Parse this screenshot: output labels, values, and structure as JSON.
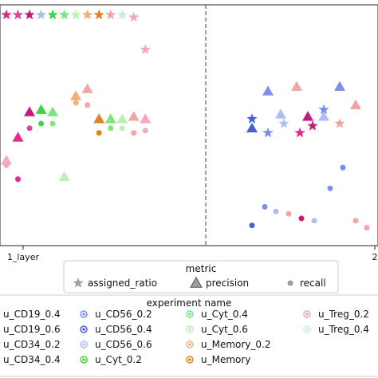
{
  "chart_data": {
    "type": "scatter",
    "x_tick_labels": [
      "1_layer",
      "2"
    ],
    "ylim": [
      0,
      1
    ],
    "metric_legend": {
      "title": "metric",
      "entries": [
        {
          "label": "assigned_ratio",
          "marker": "star"
        },
        {
          "label": "precision",
          "marker": "triangle"
        },
        {
          "label": "recall",
          "marker": "circle"
        }
      ]
    },
    "experiment_legend": {
      "title": "experiment name",
      "entries": [
        {
          "label": "u_CD19_0.4",
          "color": "#e7298a"
        },
        {
          "label": "u_CD19_0.6",
          "color": "#f4a6c8"
        },
        {
          "label": "u_CD34_0.2",
          "color": "#d9479a"
        },
        {
          "label": "u_CD34_0.4",
          "color": "#c51b7d"
        },
        {
          "label": "u_CD56_0.2",
          "color": "#7b8ff0"
        },
        {
          "label": "u_CD56_0.4",
          "color": "#4a5fd6"
        },
        {
          "label": "u_CD56_0.6",
          "color": "#b0bcf5"
        },
        {
          "label": "u_Cyt_0.2",
          "color": "#3fd63f"
        },
        {
          "label": "u_Cyt_0.4",
          "color": "#7be67b"
        },
        {
          "label": "u_Cyt_0.6",
          "color": "#b9f2b9"
        },
        {
          "label": "u_Memory_0.2",
          "color": "#f0b07a"
        },
        {
          "label": "u_Memory",
          "color": "#e6821e"
        },
        {
          "label": "u_Treg_0.2",
          "color": "#f2a5a5"
        },
        {
          "label": "u_Treg_0.4",
          "color": "#c9ecd6"
        }
      ]
    },
    "panels": [
      {
        "x_tick": "1_layer",
        "points": [
          {
            "m": "star",
            "x": 0.0,
            "y": 0.97,
            "c": "#e7298a"
          },
          {
            "m": "star",
            "x": 0.06,
            "y": 0.97,
            "c": "#d9479a"
          },
          {
            "m": "star",
            "x": 0.12,
            "y": 0.97,
            "c": "#c51b7d"
          },
          {
            "m": "star",
            "x": 0.18,
            "y": 0.97,
            "c": "#b0bcf5"
          },
          {
            "m": "star",
            "x": 0.24,
            "y": 0.97,
            "c": "#3fd63f"
          },
          {
            "m": "star",
            "x": 0.3,
            "y": 0.97,
            "c": "#7be67b"
          },
          {
            "m": "star",
            "x": 0.36,
            "y": 0.97,
            "c": "#b9f2b9"
          },
          {
            "m": "star",
            "x": 0.42,
            "y": 0.97,
            "c": "#f0b07a"
          },
          {
            "m": "star",
            "x": 0.48,
            "y": 0.97,
            "c": "#e6821e"
          },
          {
            "m": "star",
            "x": 0.54,
            "y": 0.97,
            "c": "#f2a5a5"
          },
          {
            "m": "star",
            "x": 0.6,
            "y": 0.97,
            "c": "#c9ecd6"
          },
          {
            "m": "star",
            "x": 0.66,
            "y": 0.96,
            "c": "#f4a6c8"
          },
          {
            "m": "star",
            "x": 0.72,
            "y": 0.82,
            "c": "#f4a6c8"
          },
          {
            "m": "triangle",
            "x": 0.0,
            "y": 0.34,
            "c": "#f4a6c8"
          },
          {
            "m": "triangle",
            "x": 0.06,
            "y": 0.44,
            "c": "#e7298a"
          },
          {
            "m": "triangle",
            "x": 0.12,
            "y": 0.55,
            "c": "#c51b7d"
          },
          {
            "m": "triangle",
            "x": 0.18,
            "y": 0.56,
            "c": "#3fd63f"
          },
          {
            "m": "triangle",
            "x": 0.24,
            "y": 0.55,
            "c": "#7be67b"
          },
          {
            "m": "triangle",
            "x": 0.3,
            "y": 0.27,
            "c": "#b9f2b9"
          },
          {
            "m": "triangle",
            "x": 0.36,
            "y": 0.62,
            "c": "#f0b07a"
          },
          {
            "m": "triangle",
            "x": 0.42,
            "y": 0.65,
            "c": "#f2a5a5"
          },
          {
            "m": "triangle",
            "x": 0.48,
            "y": 0.52,
            "c": "#e6821e"
          },
          {
            "m": "triangle",
            "x": 0.54,
            "y": 0.52,
            "c": "#7be67b"
          },
          {
            "m": "triangle",
            "x": 0.6,
            "y": 0.52,
            "c": "#b9f2b9"
          },
          {
            "m": "triangle",
            "x": 0.66,
            "y": 0.53,
            "c": "#f2a5a5"
          },
          {
            "m": "triangle",
            "x": 0.72,
            "y": 0.52,
            "c": "#f4a6c8"
          },
          {
            "m": "circle",
            "x": 0.0,
            "y": 0.32,
            "c": "#f4a6c8"
          },
          {
            "m": "circle",
            "x": 0.06,
            "y": 0.26,
            "c": "#e7298a"
          },
          {
            "m": "circle",
            "x": 0.12,
            "y": 0.48,
            "c": "#d9479a"
          },
          {
            "m": "circle",
            "x": 0.18,
            "y": 0.5,
            "c": "#3fd63f"
          },
          {
            "m": "circle",
            "x": 0.24,
            "y": 0.5,
            "c": "#7be67b"
          },
          {
            "m": "circle",
            "x": 0.36,
            "y": 0.59,
            "c": "#f0b07a"
          },
          {
            "m": "circle",
            "x": 0.42,
            "y": 0.58,
            "c": "#f2a5a5"
          },
          {
            "m": "circle",
            "x": 0.48,
            "y": 0.46,
            "c": "#e6821e"
          },
          {
            "m": "circle",
            "x": 0.54,
            "y": 0.48,
            "c": "#7be67b"
          },
          {
            "m": "circle",
            "x": 0.6,
            "y": 0.48,
            "c": "#b9f2b9"
          },
          {
            "m": "circle",
            "x": 0.66,
            "y": 0.46,
            "c": "#f2a5a5"
          },
          {
            "m": "circle",
            "x": 0.72,
            "y": 0.47,
            "c": "#f4a6c8"
          }
        ]
      },
      {
        "x_tick": "2",
        "points": [
          {
            "m": "star",
            "x": 0.25,
            "y": 0.52,
            "c": "#4a5fd6"
          },
          {
            "m": "star",
            "x": 0.35,
            "y": 0.46,
            "c": "#7b8ff0"
          },
          {
            "m": "star",
            "x": 0.45,
            "y": 0.5,
            "c": "#b0bcf5"
          },
          {
            "m": "star",
            "x": 0.55,
            "y": 0.46,
            "c": "#e7298a"
          },
          {
            "m": "star",
            "x": 0.63,
            "y": 0.49,
            "c": "#c51b7d"
          },
          {
            "m": "star",
            "x": 0.7,
            "y": 0.56,
            "c": "#7b8ff0"
          },
          {
            "m": "star",
            "x": 0.8,
            "y": 0.5,
            "c": "#f2a5a5"
          },
          {
            "m": "triangle",
            "x": 0.25,
            "y": 0.48,
            "c": "#4a5fd6"
          },
          {
            "m": "triangle",
            "x": 0.35,
            "y": 0.64,
            "c": "#7b8ff0"
          },
          {
            "m": "triangle",
            "x": 0.43,
            "y": 0.54,
            "c": "#b0bcf5"
          },
          {
            "m": "triangle",
            "x": 0.53,
            "y": 0.66,
            "c": "#f2a5a5"
          },
          {
            "m": "triangle",
            "x": 0.6,
            "y": 0.53,
            "c": "#c51b7d"
          },
          {
            "m": "triangle",
            "x": 0.7,
            "y": 0.53,
            "c": "#b0bcf5"
          },
          {
            "m": "triangle",
            "x": 0.8,
            "y": 0.66,
            "c": "#7b8ff0"
          },
          {
            "m": "triangle",
            "x": 0.9,
            "y": 0.58,
            "c": "#f2a5a5"
          },
          {
            "m": "circle",
            "x": 0.25,
            "y": 0.06,
            "c": "#4a5fd6"
          },
          {
            "m": "circle",
            "x": 0.33,
            "y": 0.14,
            "c": "#7b8ff0"
          },
          {
            "m": "circle",
            "x": 0.4,
            "y": 0.12,
            "c": "#b0bcf5"
          },
          {
            "m": "circle",
            "x": 0.48,
            "y": 0.11,
            "c": "#f2a5a5"
          },
          {
            "m": "circle",
            "x": 0.56,
            "y": 0.09,
            "c": "#c51b7d"
          },
          {
            "m": "circle",
            "x": 0.64,
            "y": 0.08,
            "c": "#b0bcf5"
          },
          {
            "m": "circle",
            "x": 0.74,
            "y": 0.22,
            "c": "#7b8ff0"
          },
          {
            "m": "circle",
            "x": 0.82,
            "y": 0.31,
            "c": "#7b8ff0"
          },
          {
            "m": "circle",
            "x": 0.9,
            "y": 0.08,
            "c": "#f2a5a5"
          },
          {
            "m": "circle",
            "x": 0.97,
            "y": 0.05,
            "c": "#f2a5a5"
          }
        ]
      }
    ]
  }
}
